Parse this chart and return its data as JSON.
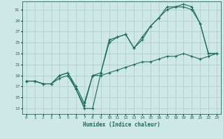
{
  "bg_color": "#cde8e5",
  "line_color": "#1a6b5e",
  "grid_color": "#b0d0cc",
  "xlabel": "Humidex (Indice chaleur)",
  "xlim": [
    -0.5,
    23.5
  ],
  "ylim": [
    12,
    32.5
  ],
  "xticks": [
    0,
    1,
    2,
    3,
    4,
    5,
    6,
    7,
    8,
    9,
    10,
    11,
    12,
    13,
    14,
    15,
    16,
    17,
    18,
    19,
    20,
    21,
    22,
    23
  ],
  "yticks": [
    13,
    15,
    17,
    19,
    21,
    23,
    25,
    27,
    29,
    31
  ],
  "line1_x": [
    0,
    1,
    2,
    3,
    4,
    5,
    6,
    7,
    8,
    9,
    10,
    11,
    12,
    13,
    14,
    15,
    16,
    17,
    18,
    19,
    20,
    21,
    22,
    23
  ],
  "line1_y": [
    18,
    18,
    17.5,
    17.5,
    19,
    19.5,
    16.5,
    13,
    13,
    19.5,
    25.5,
    26,
    26.5,
    24,
    26,
    28,
    29.5,
    31.5,
    31.5,
    32,
    31.5,
    28.5,
    23,
    23
  ],
  "line2_x": [
    0,
    1,
    2,
    3,
    4,
    5,
    6,
    7,
    8,
    9,
    10,
    11,
    12,
    13,
    14,
    15,
    16,
    17,
    18,
    19,
    20,
    21,
    22,
    23
  ],
  "line2_y": [
    18,
    18,
    17.5,
    17.5,
    19,
    19.5,
    17,
    14,
    19,
    19.5,
    25,
    26,
    26.5,
    24,
    25.5,
    28,
    29.5,
    31,
    31.5,
    31.5,
    31,
    28.5,
    23,
    23
  ],
  "line3_x": [
    0,
    1,
    2,
    3,
    4,
    5,
    6,
    7,
    8,
    9,
    10,
    11,
    12,
    13,
    14,
    15,
    16,
    17,
    18,
    19,
    20,
    21,
    22,
    23
  ],
  "line3_y": [
    18,
    18,
    17.5,
    17.5,
    18.5,
    19,
    16.5,
    13.5,
    19,
    19,
    19.5,
    20,
    20.5,
    21,
    21.5,
    21.5,
    22,
    22.5,
    22.5,
    23,
    22.5,
    22,
    22.5,
    23
  ]
}
